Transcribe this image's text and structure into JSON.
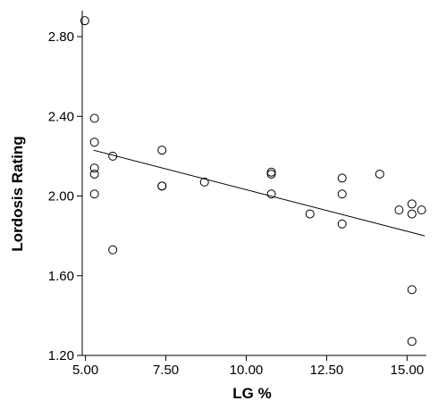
{
  "chart_data": {
    "type": "scatter",
    "xlabel": "LG %",
    "ylabel": "Lordosis Rating",
    "xlim": [
      4.9,
      15.6
    ],
    "ylim": [
      1.2,
      2.93
    ],
    "xticks": [
      5.0,
      7.5,
      10.0,
      12.5,
      15.0
    ],
    "yticks": [
      1.2,
      1.6,
      2.0,
      2.4,
      2.8
    ],
    "xtick_labels": [
      "5.00",
      "7.50",
      "10.00",
      "12.50",
      "15.00"
    ],
    "ytick_labels": [
      "1.20",
      "1.60",
      "2.00",
      "2.40",
      "2.80"
    ],
    "grid": false,
    "points": [
      {
        "x": 4.98,
        "y": 2.88
      },
      {
        "x": 5.28,
        "y": 2.39
      },
      {
        "x": 5.28,
        "y": 2.27
      },
      {
        "x": 5.28,
        "y": 2.14
      },
      {
        "x": 5.28,
        "y": 2.11
      },
      {
        "x": 5.28,
        "y": 2.01
      },
      {
        "x": 5.85,
        "y": 2.2
      },
      {
        "x": 5.85,
        "y": 1.73
      },
      {
        "x": 7.38,
        "y": 2.23
      },
      {
        "x": 7.38,
        "y": 2.05
      },
      {
        "x": 7.38,
        "y": 2.05
      },
      {
        "x": 8.7,
        "y": 2.07
      },
      {
        "x": 10.78,
        "y": 2.12
      },
      {
        "x": 10.78,
        "y": 2.11
      },
      {
        "x": 10.78,
        "y": 2.01
      },
      {
        "x": 11.98,
        "y": 1.91
      },
      {
        "x": 12.98,
        "y": 2.09
      },
      {
        "x": 12.98,
        "y": 2.01
      },
      {
        "x": 12.98,
        "y": 1.86
      },
      {
        "x": 14.15,
        "y": 2.11
      },
      {
        "x": 14.75,
        "y": 1.93
      },
      {
        "x": 15.15,
        "y": 1.96
      },
      {
        "x": 15.15,
        "y": 1.91
      },
      {
        "x": 15.45,
        "y": 1.93
      },
      {
        "x": 15.15,
        "y": 1.53
      },
      {
        "x": 15.15,
        "y": 1.27
      }
    ],
    "fit_line": {
      "x": [
        5.25,
        15.55
      ],
      "y": [
        2.23,
        1.8
      ]
    }
  }
}
